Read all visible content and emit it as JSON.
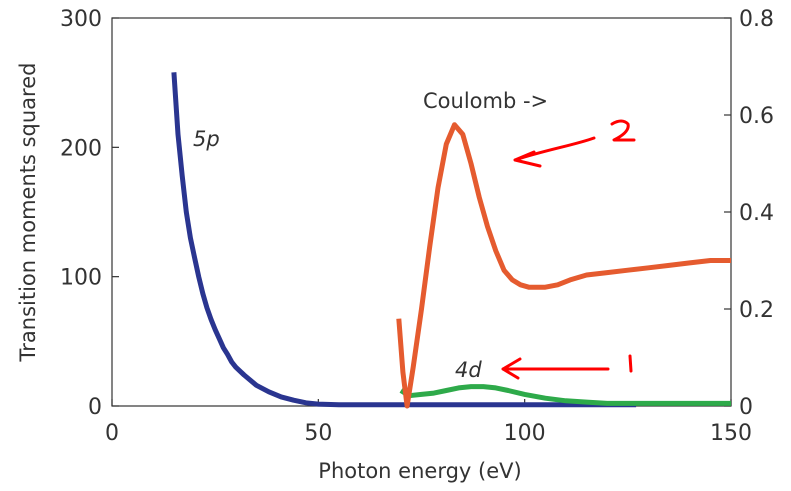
{
  "chart_data": {
    "type": "line",
    "xlabel": "Photon energy (eV)",
    "ylabel": "Transition moments squared",
    "xlim": [
      0,
      150
    ],
    "ylim": [
      0,
      300
    ],
    "y2lim": [
      0,
      0.8
    ],
    "x_ticks": [
      0,
      50,
      100,
      150
    ],
    "y_ticks": [
      0,
      100,
      200,
      300
    ],
    "y2_ticks": [
      0,
      0.2,
      0.4,
      0.6,
      0.8
    ],
    "y2_tick_labels": [
      "0",
      "0.2",
      "0.4",
      "0.6",
      "0.8"
    ],
    "grid": false,
    "series": [
      {
        "name": "5p",
        "axis": "left",
        "color": "#2a3590",
        "x": [
          15,
          16,
          17,
          18,
          19,
          20,
          21,
          22,
          23,
          24,
          25,
          26,
          27,
          28,
          29,
          30,
          32,
          35,
          38,
          41,
          44,
          47,
          50,
          55,
          60,
          80,
          100,
          127
        ],
        "y": [
          258,
          210,
          178,
          150,
          130,
          115,
          100,
          87,
          76,
          67,
          59,
          52,
          45,
          40,
          34,
          30,
          24,
          16,
          11,
          7,
          4.5,
          2.5,
          1.5,
          1,
          1,
          1,
          1,
          1
        ]
      },
      {
        "name": "4d",
        "axis": "left",
        "color": "#2eaa4a",
        "x": [
          70,
          72,
          75,
          78,
          81,
          84,
          87,
          90,
          93,
          96,
          100,
          105,
          110,
          115,
          120,
          125,
          130,
          140,
          150
        ],
        "y": [
          12,
          8,
          9,
          10,
          12,
          14,
          15,
          15,
          14,
          12,
          9,
          6,
          4,
          3,
          2,
          2,
          2,
          2,
          2
        ]
      },
      {
        "name": "Coulomb",
        "axis": "right",
        "color": "#e55b2f",
        "x": [
          69.5,
          70.5,
          71.5,
          73,
          75,
          77,
          79,
          81,
          83,
          85,
          87,
          89,
          91,
          93,
          95,
          97,
          99,
          101,
          103,
          105,
          108,
          111,
          115,
          120,
          125,
          130,
          135,
          140,
          145,
          150
        ],
        "y": [
          0.18,
          0.07,
          0.0,
          0.08,
          0.2,
          0.33,
          0.45,
          0.54,
          0.58,
          0.56,
          0.5,
          0.43,
          0.37,
          0.32,
          0.28,
          0.26,
          0.25,
          0.245,
          0.245,
          0.245,
          0.25,
          0.26,
          0.27,
          0.275,
          0.28,
          0.285,
          0.29,
          0.295,
          0.3,
          0.3
        ]
      }
    ],
    "annotations": [
      {
        "text": "5p",
        "x": 20,
        "y": 200,
        "italic": true
      },
      {
        "text": "4d",
        "x": 83,
        "y": 25,
        "italic": true
      },
      {
        "text": "Coulomb ->",
        "x": 75,
        "y": 228,
        "italic": false
      }
    ],
    "handwritten_marks": [
      {
        "text": "2",
        "color": "#ff0000",
        "arrow_to": [
          98,
          185
        ]
      },
      {
        "text": "1",
        "color": "#ff0000",
        "arrow_to": [
          94,
          27
        ]
      }
    ]
  }
}
